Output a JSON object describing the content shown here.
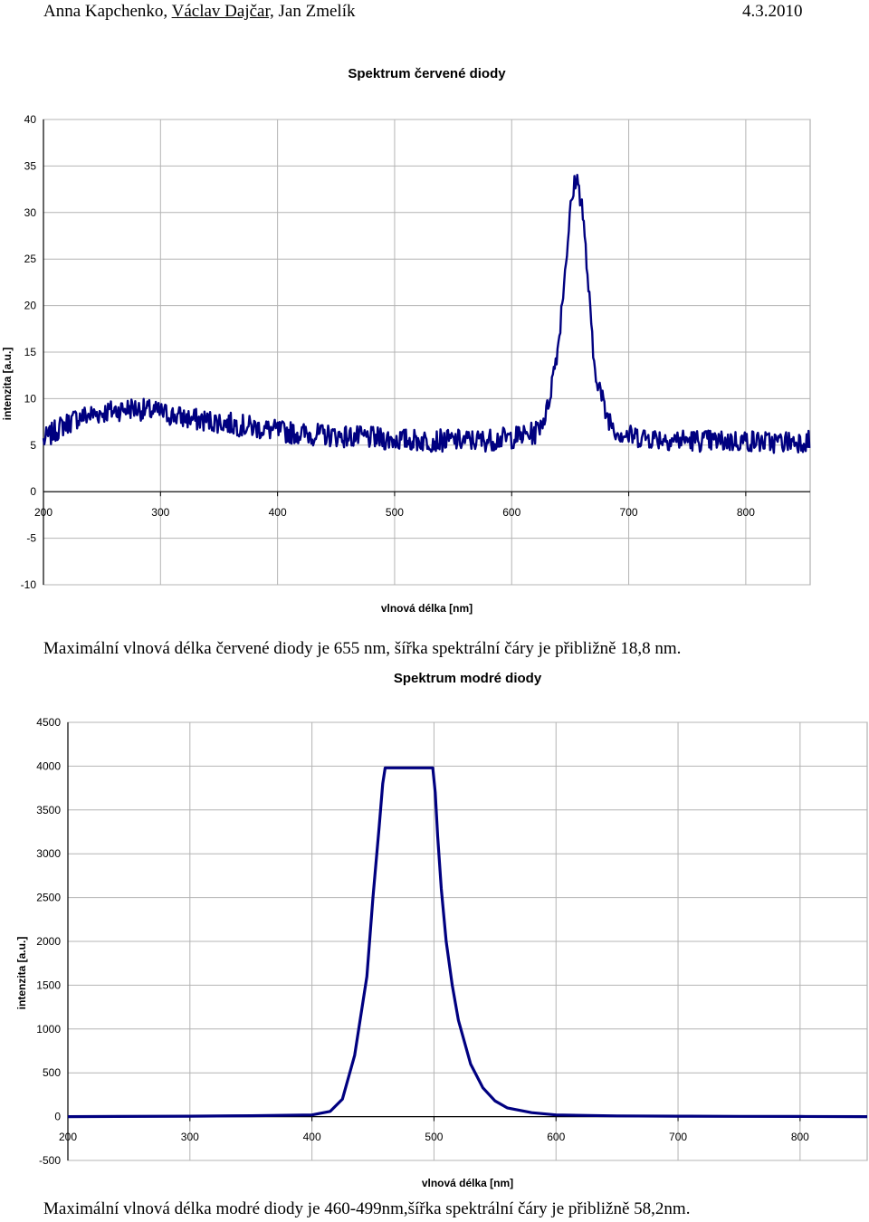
{
  "header": {
    "author1": "Anna Kapchenko,",
    "author2": "Václav Dajčar,",
    "author3": "Jan Zmelík",
    "date": "4.3.2010"
  },
  "charts_text": {
    "caption1": "Maximální vlnová délka červené diody je 655 nm, šířka spektrální čáry je přibližně 18,8 nm.",
    "caption2": "Maximální vlnová délka modré diody je 460-499nm,šířka spektrální čáry je přibližně 58,2nm."
  },
  "chart_data": [
    {
      "type": "line",
      "title": "Spektrum červené diody",
      "xlabel": "vlnová délka [nm]",
      "ylabel": "intenzita [a.u.]",
      "xlim": [
        200,
        855
      ],
      "ylim": [
        -10,
        40
      ],
      "x_ticks": [
        200,
        300,
        400,
        500,
        600,
        700,
        800
      ],
      "y_ticks": [
        -10,
        -5,
        0,
        5,
        10,
        15,
        20,
        25,
        30,
        35,
        40
      ],
      "grid": true,
      "legend": "none",
      "line_color": "#000080",
      "series": [
        {
          "x": [
            200,
            215,
            230,
            250,
            275,
            300,
            325,
            350,
            375,
            400,
            425,
            450,
            475,
            500,
            525,
            550,
            575,
            600,
            620,
            630,
            640,
            645,
            650,
            655,
            660,
            665,
            670,
            680,
            690,
            700,
            720,
            740,
            760,
            780,
            800,
            820,
            840,
            855
          ],
          "y": [
            5.5,
            7.0,
            8.0,
            8.5,
            9.0,
            8.5,
            7.8,
            7.5,
            7.0,
            6.5,
            6.2,
            6.0,
            5.8,
            5.6,
            5.5,
            5.5,
            5.5,
            5.8,
            6.3,
            8.5,
            16.0,
            23.0,
            30.0,
            34.0,
            31.0,
            23.0,
            14.0,
            8.5,
            6.5,
            6.0,
            5.8,
            5.6,
            5.5,
            5.4,
            5.5,
            5.3,
            5.4,
            5.5
          ]
        }
      ]
    },
    {
      "type": "line",
      "title": "Spektrum modré diody",
      "xlabel": "vlnová délka [nm]",
      "ylabel": "intenzita [a.u.]",
      "xlim": [
        200,
        855
      ],
      "ylim": [
        -500,
        4500
      ],
      "x_ticks": [
        200,
        300,
        400,
        500,
        600,
        700,
        800
      ],
      "y_ticks": [
        -500,
        0,
        500,
        1000,
        1500,
        2000,
        2500,
        3000,
        3500,
        4000,
        4500
      ],
      "grid": true,
      "legend": "none",
      "line_color": "#000080",
      "series": [
        {
          "x": [
            200,
            300,
            350,
            400,
            415,
            425,
            435,
            445,
            450,
            455,
            458,
            460,
            480,
            499,
            501,
            503,
            506,
            510,
            515,
            520,
            530,
            540,
            550,
            560,
            580,
            600,
            650,
            700,
            750,
            800,
            855
          ],
          "y": [
            0,
            5,
            10,
            20,
            60,
            200,
            700,
            1600,
            2500,
            3300,
            3800,
            3980,
            3980,
            3980,
            3700,
            3200,
            2600,
            2000,
            1500,
            1100,
            600,
            330,
            180,
            100,
            45,
            20,
            8,
            5,
            3,
            2,
            0
          ]
        }
      ]
    }
  ]
}
